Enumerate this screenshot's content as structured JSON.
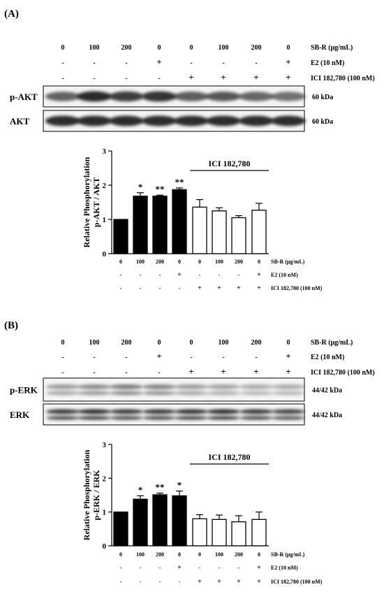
{
  "panels": [
    {
      "panel_label": "(A)",
      "lane_header": {
        "sbr_values": [
          "0",
          "100",
          "200",
          "0",
          "0",
          "100",
          "200",
          "0"
        ],
        "sbr_label": "SB-R (μg/mL)",
        "e2_marks": [
          "-",
          "-",
          "-",
          "+",
          "-",
          "-",
          "-",
          "+"
        ],
        "e2_label": "E2 (10 nM)",
        "ici_marks": [
          "-",
          "-",
          "-",
          "-",
          "+",
          "+",
          "+",
          "+"
        ],
        "ici_label": "ICI 182,780 (100 nM)"
      },
      "blots": [
        {
          "name": "p-AKT",
          "size": "60 kDa",
          "color": "#2a2a2a",
          "intensity": [
            0.72,
            1.0,
            0.9,
            0.95,
            0.75,
            0.78,
            0.7,
            0.65
          ]
        },
        {
          "name": "AKT",
          "size": "60 kDa",
          "color": "#222222",
          "intensity": [
            0.95,
            0.95,
            0.95,
            0.95,
            0.95,
            0.95,
            0.95,
            0.95
          ]
        }
      ]
    },
    {
      "panel_label": "(B)",
      "lane_header": {
        "sbr_values": [
          "0",
          "100",
          "200",
          "0",
          "0",
          "100",
          "200",
          "0"
        ],
        "sbr_label": "SB-R (μg/mL)",
        "e2_marks": [
          "-",
          "-",
          "-",
          "+",
          "-",
          "-",
          "-",
          "+"
        ],
        "e2_label": "E2 (10 nM)",
        "ici_marks": [
          "-",
          "-",
          "-",
          "-",
          "+",
          "+",
          "+",
          "+"
        ],
        "ici_label": "ICI 182,780 (100 nM)"
      },
      "blots": [
        {
          "name": "p-ERK",
          "size": "44/42 kDa",
          "color": "#555555",
          "intensity": [
            0.55,
            0.65,
            0.75,
            0.7,
            0.55,
            0.5,
            0.45,
            0.45
          ]
        },
        {
          "name": "ERK",
          "size": "44/42 kDa",
          "color": "#1e1e1e",
          "intensity": [
            0.85,
            0.9,
            0.85,
            0.85,
            0.88,
            0.9,
            0.85,
            0.8
          ]
        }
      ]
    }
  ],
  "chart_data": [
    {
      "type": "bar",
      "ylabel": "Relative Phosphorylation\np-AKT / AKT",
      "ylim": [
        0,
        3
      ],
      "yticks": [
        "0",
        "1",
        "2",
        "3"
      ],
      "bracket_label": "ICI 182,780",
      "series": [
        {
          "values": [
            1.0,
            1.68,
            1.68,
            1.87,
            1.36,
            1.25,
            1.05,
            1.27
          ],
          "errors": [
            0,
            0.1,
            0.03,
            0.05,
            0.22,
            0.09,
            0.06,
            0.2
          ],
          "fill": [
            "black",
            "black",
            "black",
            "black",
            "white",
            "white",
            "white",
            "white"
          ],
          "significance": [
            "",
            "*",
            "**",
            "**",
            "",
            "",
            "",
            ""
          ]
        }
      ],
      "xrows": {
        "sbr_values": [
          "0",
          "100",
          "200",
          "0",
          "0",
          "100",
          "200",
          "0"
        ],
        "sbr_label": "SB-R (μg/mL)",
        "e2_marks": [
          "-",
          "-",
          "-",
          "+",
          "-",
          "-",
          "-",
          "+"
        ],
        "e2_label": "E2 (10 nM)",
        "ici_marks": [
          "-",
          "-",
          "-",
          "-",
          "+",
          "+",
          "+",
          "+"
        ],
        "ici_label": "ICI 182,780 (100 nM)"
      }
    },
    {
      "type": "bar",
      "ylabel": "Relative Phosphorylation\np-ERK / ERK",
      "ylim": [
        0,
        3
      ],
      "yticks": [
        "0",
        "1",
        "2",
        "3"
      ],
      "bracket_label": "ICI 182,780",
      "series": [
        {
          "values": [
            1.0,
            1.38,
            1.51,
            1.48,
            0.8,
            0.78,
            0.71,
            0.78
          ],
          "errors": [
            0,
            0.1,
            0.05,
            0.14,
            0.12,
            0.13,
            0.18,
            0.22
          ],
          "fill": [
            "black",
            "black",
            "black",
            "black",
            "white",
            "white",
            "white",
            "white"
          ],
          "significance": [
            "",
            "*",
            "**",
            "*",
            "",
            "",
            "",
            ""
          ]
        }
      ],
      "xrows": {
        "sbr_values": [
          "0",
          "100",
          "200",
          "0",
          "0",
          "100",
          "200",
          "0"
        ],
        "sbr_label": "SB-R (μg/mL)",
        "e2_marks": [
          "-",
          "-",
          "-",
          "+",
          "-",
          "-",
          "-",
          "+"
        ],
        "e2_label": "E2 (10 nM)",
        "ici_marks": [
          "-",
          "-",
          "-",
          "-",
          "+",
          "+",
          "+",
          "+"
        ],
        "ici_label": "ICI 182,780 (100 nM)"
      }
    }
  ]
}
